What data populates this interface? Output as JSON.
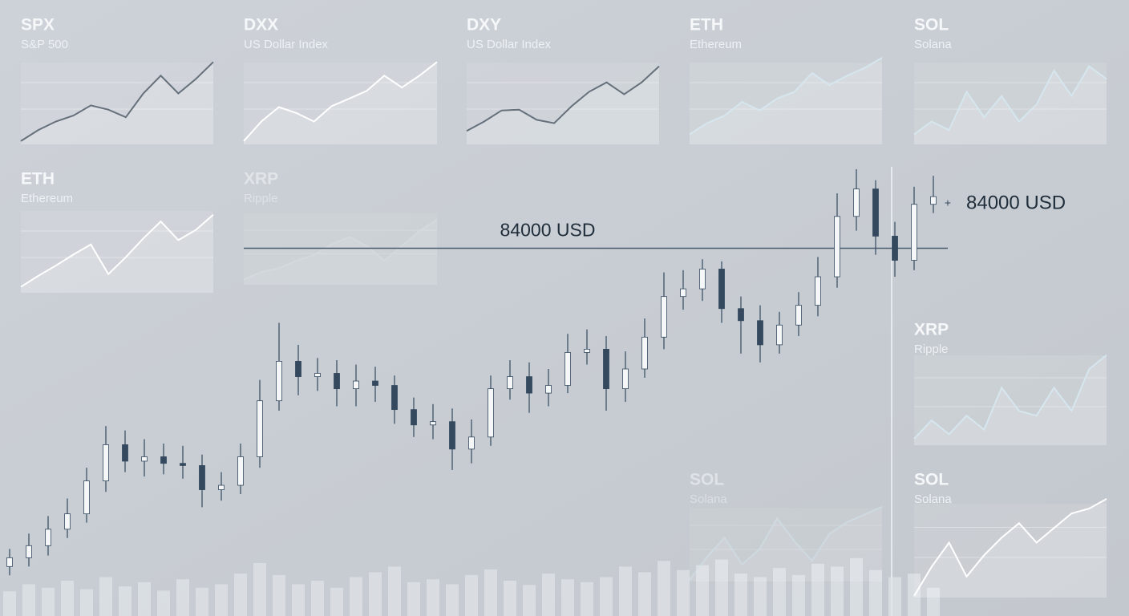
{
  "chart_data": [
    {
      "type": "candlestick",
      "up_color": "#f4f6f8",
      "down_color": "#34495e",
      "edge_color": "#34495e",
      "ylim": [
        69000,
        88000
      ],
      "open": [
        69500,
        69900,
        70450,
        71200,
        71900,
        73400,
        75050,
        74300,
        74500,
        74200,
        74100,
        73000,
        73200,
        74500,
        77050,
        78850,
        78150,
        78300,
        77600,
        77950,
        77750,
        76650,
        75950,
        76100,
        74850,
        75400,
        77600,
        78150,
        77400,
        77750,
        79250,
        79400,
        77600,
        78500,
        79950,
        81800,
        82150,
        83050,
        81250,
        80700,
        79600,
        80500,
        81400,
        82700,
        85450,
        86700,
        84550,
        83450,
        86000
      ],
      "high": [
        70300,
        71000,
        71800,
        72600,
        74000,
        75900,
        75700,
        75300,
        75100,
        75000,
        74600,
        73800,
        75100,
        78000,
        80600,
        79600,
        79000,
        78900,
        78700,
        78600,
        78200,
        77200,
        76900,
        76700,
        76200,
        78200,
        78900,
        78800,
        78500,
        80100,
        80300,
        80000,
        79300,
        80800,
        82900,
        83000,
        83500,
        83400,
        81800,
        81400,
        81100,
        82000,
        83600,
        86500,
        87600,
        87100,
        85200,
        86800,
        87300
      ],
      "low": [
        69100,
        69500,
        70000,
        70800,
        71500,
        72900,
        73800,
        73600,
        73700,
        73500,
        72200,
        72500,
        72800,
        74000,
        76600,
        77300,
        77500,
        76800,
        76800,
        77000,
        76000,
        75400,
        75300,
        73900,
        74200,
        75000,
        77100,
        76500,
        76800,
        77400,
        78700,
        76600,
        77000,
        78100,
        79400,
        81200,
        81600,
        80600,
        79200,
        78800,
        79200,
        80000,
        80900,
        82200,
        84800,
        83700,
        82700,
        83000,
        85600
      ],
      "close": [
        69900,
        70450,
        71200,
        71900,
        73400,
        75050,
        74300,
        74500,
        74200,
        74100,
        73000,
        73200,
        74500,
        77050,
        78850,
        78150,
        78300,
        77600,
        77950,
        77750,
        76650,
        75950,
        76100,
        74850,
        75400,
        77600,
        78150,
        77400,
        77750,
        79250,
        79400,
        77600,
        78500,
        79950,
        81800,
        82150,
        83050,
        81250,
        80700,
        79600,
        80500,
        81400,
        82700,
        85450,
        86700,
        84550,
        83450,
        86000,
        86350
      ],
      "hline": {
        "value": 84000,
        "label": "84000 USD"
      },
      "price_label": {
        "value": 84000,
        "label": "84000 USD"
      }
    },
    {
      "type": "bar",
      "color": "#dfe3e7",
      "ylim": [
        0,
        100
      ],
      "values": [
        35,
        45,
        40,
        50,
        38,
        55,
        42,
        48,
        36,
        52,
        40,
        45,
        60,
        75,
        58,
        45,
        50,
        40,
        55,
        62,
        70,
        48,
        52,
        45,
        58,
        66,
        50,
        44,
        60,
        52,
        48,
        55,
        70,
        62,
        78,
        65,
        72,
        80,
        60,
        55,
        68,
        58,
        74,
        70,
        82,
        65,
        55,
        60,
        40
      ]
    },
    {
      "type": "line",
      "title": "SPX",
      "subtitle": "S&P 500",
      "color": "#66707a",
      "ylim": [
        0,
        100
      ],
      "values": [
        2,
        15,
        25,
        32,
        44,
        39,
        30,
        58,
        79,
        58,
        75,
        95
      ]
    },
    {
      "type": "line",
      "title": "DXX",
      "subtitle": "US Dollar Index",
      "color": "#ffffff",
      "ylim": [
        0,
        100
      ],
      "values": [
        2,
        25,
        42,
        35,
        25,
        43,
        52,
        61,
        79,
        65,
        79,
        95
      ]
    },
    {
      "type": "line",
      "title": "DXY",
      "subtitle": "US Dollar Index",
      "color": "#66707a",
      "ylim": [
        0,
        100
      ],
      "values": [
        14,
        25,
        38,
        39,
        27,
        23,
        43,
        60,
        71,
        57,
        71,
        90
      ]
    },
    {
      "type": "line",
      "title": "ETH",
      "subtitle": "Ethereum",
      "color": "#d6e6ee",
      "ylim": [
        0,
        100
      ],
      "values": [
        10,
        23,
        32,
        48,
        38,
        52,
        60,
        82,
        68,
        79,
        88,
        100
      ]
    },
    {
      "type": "line",
      "title": "SOL",
      "subtitle": "Solana",
      "color": "#d6e6ee",
      "ylim": [
        0,
        100
      ],
      "values": [
        10,
        25,
        15,
        60,
        30,
        55,
        25,
        45,
        85,
        55,
        90,
        75
      ]
    },
    {
      "type": "line",
      "title": "ETH",
      "subtitle": "Ethereum",
      "color": "#ffffff",
      "ylim": [
        0,
        100
      ],
      "values": [
        5,
        18,
        30,
        43,
        55,
        20,
        40,
        62,
        82,
        60,
        72,
        90
      ]
    },
    {
      "type": "line",
      "title": "XRP",
      "subtitle": "Ripple",
      "color": "#dde2e6",
      "ylim": [
        0,
        100
      ],
      "values": [
        5,
        15,
        20,
        30,
        38,
        52,
        62,
        50,
        30,
        50,
        70,
        85
      ]
    },
    {
      "type": "line",
      "title": "XRP",
      "subtitle": "Ripple",
      "color": "#d6e6ee",
      "ylim": [
        0,
        100
      ],
      "values": [
        5,
        25,
        10,
        30,
        15,
        60,
        35,
        30,
        60,
        35,
        80,
        95
      ]
    },
    {
      "type": "line",
      "title": "SOL",
      "subtitle": "Solana",
      "color": "#d6e6ee",
      "ylim": [
        0,
        100
      ],
      "values": [
        0,
        30,
        55,
        20,
        40,
        80,
        50,
        25,
        60,
        75,
        85,
        95
      ]
    },
    {
      "type": "line",
      "title": "SOL",
      "subtitle": "Solana",
      "color": "#ffffff",
      "ylim": [
        0,
        100
      ],
      "values": [
        0,
        30,
        55,
        20,
        42,
        60,
        75,
        55,
        70,
        85,
        90,
        100
      ]
    }
  ]
}
